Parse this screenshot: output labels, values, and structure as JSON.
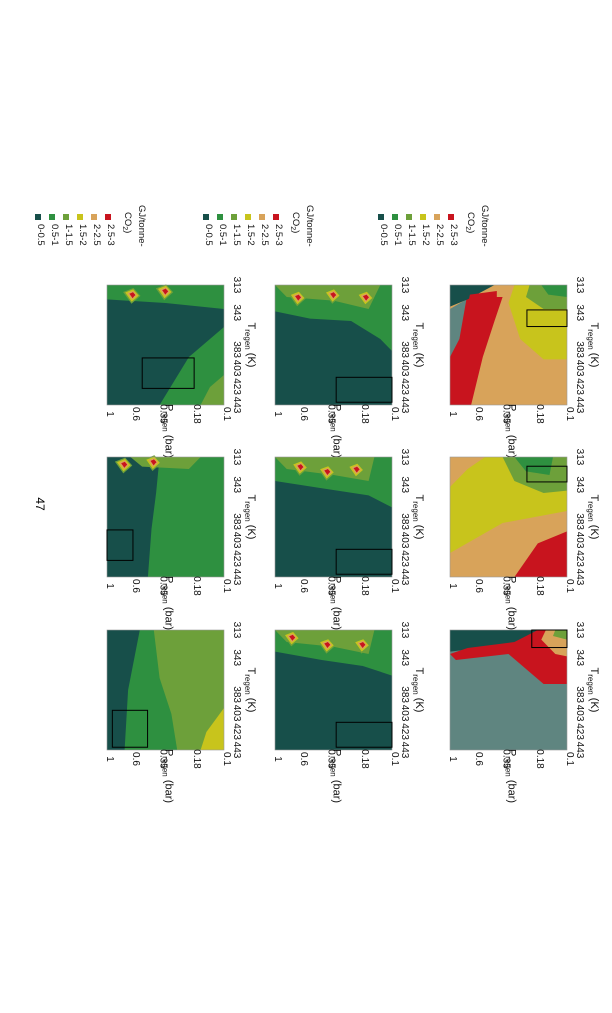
{
  "page_number": "47",
  "legend": {
    "title_line1": "GJ/tonne-",
    "title_line2_pre": "CO",
    "title_line2_sub": "2",
    "title_line2_post": ")",
    "items": [
      {
        "label": "2.5-3",
        "color": "#c8141e"
      },
      {
        "label": "2-2.5",
        "color": "#d8a35a"
      },
      {
        "label": "1.5-2",
        "color": "#c8c41c"
      },
      {
        "label": "1-1.5",
        "color": "#6da03a"
      },
      {
        "label": "0.5-1",
        "color": "#2e9040"
      },
      {
        "label": "0-0.5",
        "color": "#174f4a"
      }
    ],
    "above_range_color": "#5f8580"
  },
  "axes": {
    "t_label_main": "T",
    "t_label_sub": "regen",
    "t_label_unit": " (K)",
    "p_label_main": "P",
    "p_label_sub": "regen",
    "p_label_unit": " (bar)",
    "t_ticks": [
      "313",
      "343",
      "383",
      "403",
      "423",
      "443"
    ],
    "p_ticks": [
      "0.1",
      "0.18",
      "0.35",
      "0.6",
      "1"
    ]
  },
  "chart_data": [
    {
      "type": "heatmap",
      "row": 1,
      "col": 1,
      "xlabel": "Tregen (K)",
      "ylabel": "Pregen (bar)",
      "xlim": [
        313,
        443
      ],
      "ylim": [
        0.1,
        1
      ],
      "dominant_band": "2-2.5",
      "optimum_box": {
        "T": [
          340,
          358
        ],
        "P": [
          0.1,
          0.22
        ]
      }
    },
    {
      "type": "heatmap",
      "row": 1,
      "col": 2,
      "xlabel": "Tregen (K)",
      "ylabel": "Pregen (bar)",
      "xlim": [
        313,
        443
      ],
      "ylim": [
        0.1,
        1
      ],
      "dominant_band": "1.5-2",
      "optimum_box": {
        "T": [
          323,
          340
        ],
        "P": [
          0.1,
          0.22
        ]
      }
    },
    {
      "type": "heatmap",
      "row": 1,
      "col": 3,
      "xlabel": "Tregen (K)",
      "ylabel": "Pregen (bar)",
      "xlim": [
        313,
        443
      ],
      "ylim": [
        0.1,
        1
      ],
      "dominant_band": "above 3",
      "optimum_box": {
        "T": [
          313,
          332
        ],
        "P": [
          0.1,
          0.2
        ]
      }
    },
    {
      "type": "heatmap",
      "row": 2,
      "col": 1,
      "xlabel": "Tregen (K)",
      "ylabel": "Pregen (bar)",
      "xlim": [
        313,
        443
      ],
      "ylim": [
        0.1,
        1
      ],
      "dominant_band": "0-0.5",
      "optimum_box": {
        "T": [
          413,
          440
        ],
        "P": [
          0.1,
          0.3
        ]
      }
    },
    {
      "type": "heatmap",
      "row": 2,
      "col": 2,
      "xlabel": "Tregen (K)",
      "ylabel": "Pregen (bar)",
      "xlim": [
        313,
        443
      ],
      "ylim": [
        0.1,
        1
      ],
      "dominant_band": "0-0.5",
      "optimum_box": {
        "T": [
          413,
          440
        ],
        "P": [
          0.1,
          0.3
        ]
      }
    },
    {
      "type": "heatmap",
      "row": 2,
      "col": 3,
      "xlabel": "Tregen (K)",
      "ylabel": "Pregen (bar)",
      "xlim": [
        313,
        443
      ],
      "ylim": [
        0.1,
        1
      ],
      "dominant_band": "0-0.5",
      "optimum_box": {
        "T": [
          413,
          440
        ],
        "P": [
          0.1,
          0.3
        ]
      }
    },
    {
      "type": "heatmap",
      "row": 3,
      "col": 1,
      "xlabel": "Tregen (K)",
      "ylabel": "Pregen (bar)",
      "xlim": [
        313,
        443
      ],
      "ylim": [
        0.1,
        1
      ],
      "dominant_band": "0-0.5",
      "optimum_box": {
        "T": [
          392,
          425
        ],
        "P": [
          0.18,
          0.5
        ]
      }
    },
    {
      "type": "heatmap",
      "row": 3,
      "col": 3,
      "xlabel": "Tregen (K)",
      "ylabel": "Pregen (bar)",
      "xlim": [
        313,
        443
      ],
      "ylim": [
        0.1,
        1
      ],
      "dominant_band": "0.5-1",
      "optimum_box": {
        "T": [
          392,
          425
        ],
        "P": [
          0.6,
          1
        ]
      }
    },
    {
      "type": "heatmap",
      "row": 3,
      "col": 4,
      "xlabel": "Tregen (K)",
      "ylabel": "Pregen (bar)",
      "xlim": [
        313,
        443
      ],
      "ylim": [
        0.1,
        1
      ],
      "dominant_band": "0.5-1",
      "optimum_box": {
        "T": [
          400,
          440
        ],
        "P": [
          0.45,
          0.9
        ]
      }
    }
  ]
}
